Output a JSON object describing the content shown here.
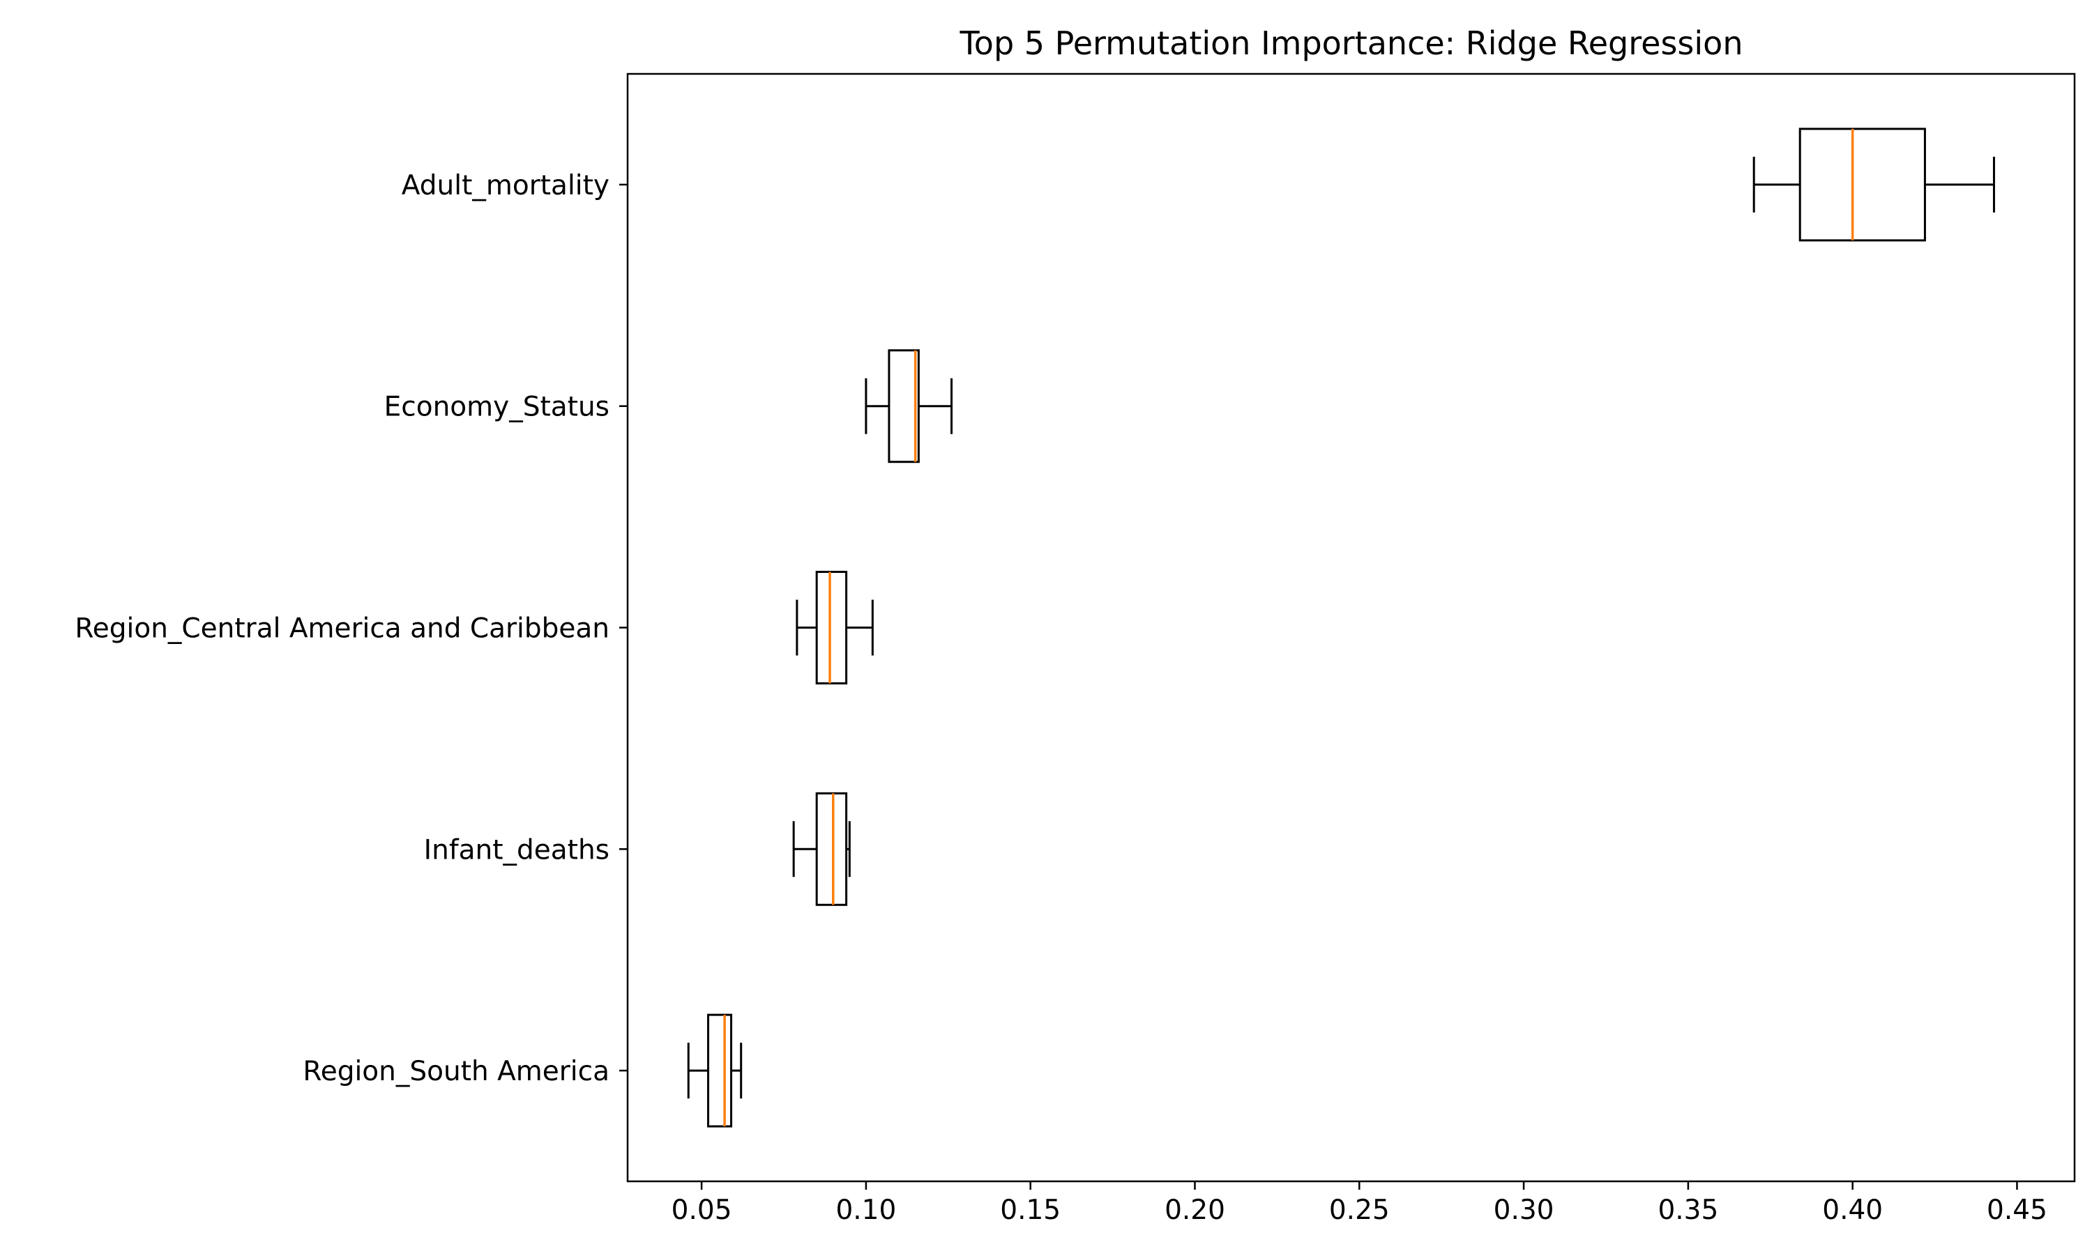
{
  "chart_data": {
    "type": "boxplot",
    "orientation": "horizontal",
    "title": "Top 5 Permutation Importance: Ridge Regression",
    "xlabel": "",
    "ylabel": "",
    "xlim": [
      0.0275,
      0.4675
    ],
    "x_ticks": [
      0.05,
      0.1,
      0.15,
      0.2,
      0.25,
      0.3,
      0.35,
      0.4,
      0.45
    ],
    "x_tick_labels": [
      "0.05",
      "0.10",
      "0.15",
      "0.20",
      "0.25",
      "0.30",
      "0.35",
      "0.40",
      "0.45"
    ],
    "grid": false,
    "categories": [
      "Adult_mortality",
      "Economy_Status",
      "Region_Central America and Caribbean",
      "Infant_deaths",
      "Region_South America"
    ],
    "boxes": [
      {
        "whisker_low": 0.37,
        "q1": 0.384,
        "median": 0.4,
        "q3": 0.422,
        "whisker_high": 0.443
      },
      {
        "whisker_low": 0.1,
        "q1": 0.107,
        "median": 0.115,
        "q3": 0.116,
        "whisker_high": 0.126
      },
      {
        "whisker_low": 0.079,
        "q1": 0.085,
        "median": 0.089,
        "q3": 0.094,
        "whisker_high": 0.102
      },
      {
        "whisker_low": 0.078,
        "q1": 0.085,
        "median": 0.09,
        "q3": 0.094,
        "whisker_high": 0.095
      },
      {
        "whisker_low": 0.046,
        "q1": 0.052,
        "median": 0.057,
        "q3": 0.059,
        "whisker_high": 0.062
      }
    ],
    "colors": {
      "box": "#000000",
      "median": "#ff7f0e",
      "axes": "#000000"
    }
  }
}
